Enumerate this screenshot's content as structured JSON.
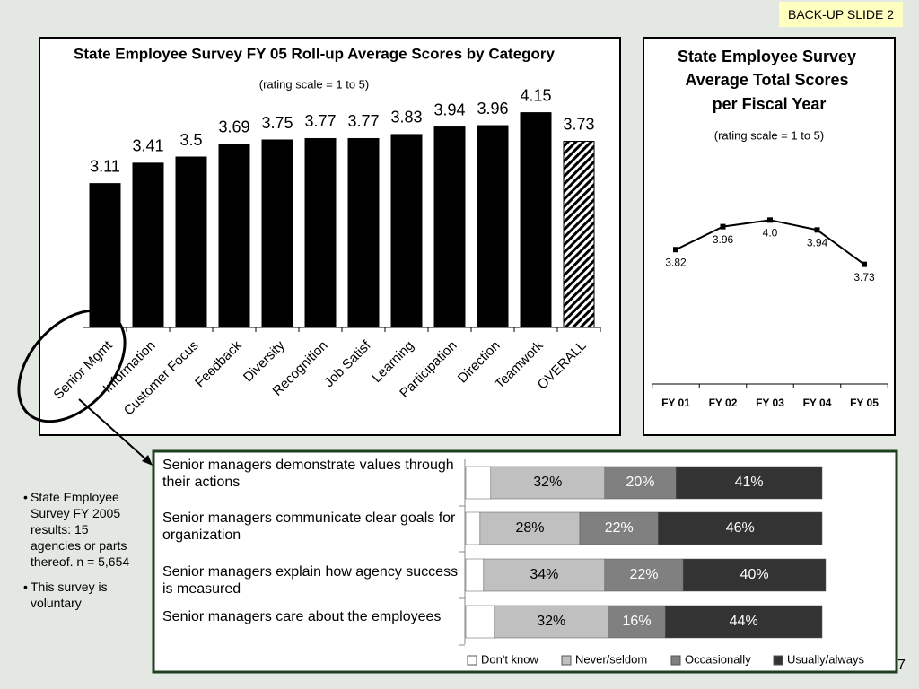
{
  "badge": "BACK-UP SLIDE 2",
  "page_number": "7",
  "notes": [
    "State Employee Survey FY 2005 results: 15 agencies or parts thereof. n = 5,654",
    "This survey is voluntary"
  ],
  "chart_data": [
    {
      "type": "bar",
      "title": "State Employee Survey FY 05 Roll-up Average Scores by Category",
      "subtitle": "(rating scale = 1 to 5)",
      "categories": [
        "Senior Mgmt",
        "Information",
        "Customer Focus",
        "Feedback",
        "Diversity",
        "Recognition",
        "Job Satisf",
        "Learning",
        "Participation",
        "Direction",
        "Teamwork",
        "OVERALL"
      ],
      "values": [
        3.11,
        3.41,
        3.5,
        3.69,
        3.75,
        3.77,
        3.77,
        3.83,
        3.94,
        3.96,
        4.15,
        3.73
      ],
      "color": "#000000",
      "hatched_category": "OVERALL",
      "ylim": [
        1,
        5
      ]
    },
    {
      "type": "line",
      "title": [
        "State Employee Survey",
        "Average Total Scores",
        "per Fiscal Year"
      ],
      "subtitle": "(rating scale = 1 to 5)",
      "categories": [
        "FY 01",
        "FY 02",
        "FY 03",
        "FY 04",
        "FY 05"
      ],
      "values": [
        3.82,
        3.96,
        4.0,
        3.94,
        3.73
      ],
      "value_labels": [
        "3.82",
        "3.96",
        "4.0",
        "3.94",
        "3.73"
      ],
      "color": "#000000",
      "ylim": [
        3,
        4.5
      ]
    },
    {
      "type": "stacked_bar_h",
      "categories": [
        "Senior managers demonstrate values through their actions",
        "Senior managers communicate clear goals for organization",
        "Senior managers explain how agency success is measured",
        "Senior managers care about the employees"
      ],
      "series": [
        {
          "name": "Don't know",
          "color": "#ffffff",
          "values": [
            7,
            4,
            5,
            8
          ]
        },
        {
          "name": "Never/seldom",
          "color": "#c0c0c0",
          "values": [
            32,
            28,
            34,
            32
          ],
          "value_labels": [
            "32%",
            "28%",
            "34%",
            "32%"
          ]
        },
        {
          "name": "Occasionally",
          "color": "#808080",
          "values": [
            20,
            22,
            22,
            16
          ],
          "value_labels": [
            "20%",
            "22%",
            "22%",
            "16%"
          ]
        },
        {
          "name": "Usually/always",
          "color": "#333333",
          "values": [
            41,
            46,
            40,
            44
          ],
          "value_labels": [
            "41%",
            "46%",
            "40%",
            "44%"
          ]
        }
      ],
      "xlim": [
        0,
        100
      ]
    }
  ]
}
